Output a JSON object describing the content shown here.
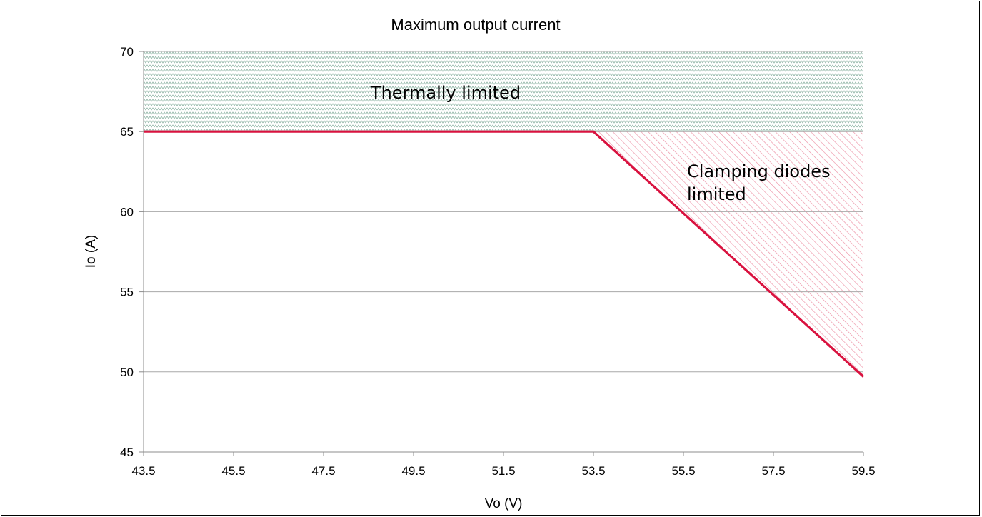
{
  "chart_data": {
    "type": "line",
    "title": "Maximum output current",
    "xlabel": "Vo (V)",
    "ylabel": "Io (A)",
    "xlim": [
      43.5,
      59.5
    ],
    "ylim": [
      45,
      70
    ],
    "xticks": [
      "43.5",
      "45.5",
      "47.5",
      "49.5",
      "51.5",
      "53.5",
      "55.5",
      "57.5",
      "59.5"
    ],
    "yticks": [
      "45",
      "50",
      "55",
      "60",
      "65",
      "70"
    ],
    "grid": true,
    "series": [
      {
        "x": [
          43.5,
          53.5,
          59.5
        ],
        "y": [
          65,
          65,
          49.7
        ],
        "color": "#d9123f"
      }
    ],
    "regions": [
      {
        "label": "Thermally limited",
        "pattern": "zigzag",
        "color": "#8fb5a5",
        "x": [
          43.5,
          59.5,
          59.5,
          43.5
        ],
        "y": [
          70,
          70,
          65,
          65
        ]
      },
      {
        "label_lines": [
          "Clamping diodes",
          "limited"
        ],
        "pattern": "diagonal-hatch",
        "color": "#ec8fa4",
        "x": [
          53.5,
          59.5,
          59.5
        ],
        "y": [
          65,
          65,
          49.7
        ]
      }
    ]
  }
}
